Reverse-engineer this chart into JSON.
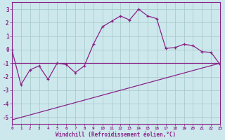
{
  "xlabel": "Windchill (Refroidissement éolien,°C)",
  "background_color": "#cce8ec",
  "line_color": "#882288",
  "grid_color": "#aacccc",
  "hours": [
    0,
    1,
    2,
    3,
    4,
    5,
    6,
    7,
    8,
    9,
    10,
    11,
    12,
    13,
    14,
    15,
    16,
    17,
    18,
    19,
    20,
    21,
    22,
    23
  ],
  "windchill": [
    0,
    -2.6,
    -1.5,
    -1.2,
    -2.2,
    -1.0,
    -1.1,
    -1.7,
    -1.2,
    0.4,
    1.7,
    2.1,
    2.5,
    2.2,
    3.0,
    2.5,
    2.3,
    0.1,
    0.15,
    0.4,
    0.3,
    -0.15,
    -0.2,
    -1.1
  ],
  "trend_x": [
    0,
    23
  ],
  "trend_y": [
    -5.2,
    -1.0
  ],
  "trend2_x": [
    0,
    23
  ],
  "trend2_y": [
    -1.0,
    -1.0
  ],
  "ylim": [
    -5.5,
    3.5
  ],
  "xlim": [
    0,
    23
  ],
  "yticks": [
    -5,
    -4,
    -3,
    -2,
    -1,
    0,
    1,
    2,
    3
  ],
  "xtick_labels": [
    "0",
    "1",
    "2",
    "3",
    "4",
    "5",
    "6",
    "7",
    "8",
    "9",
    "10",
    "11",
    "12",
    "13",
    "14",
    "15",
    "16",
    "17",
    "18",
    "19",
    "20",
    "21",
    "22",
    "23"
  ]
}
